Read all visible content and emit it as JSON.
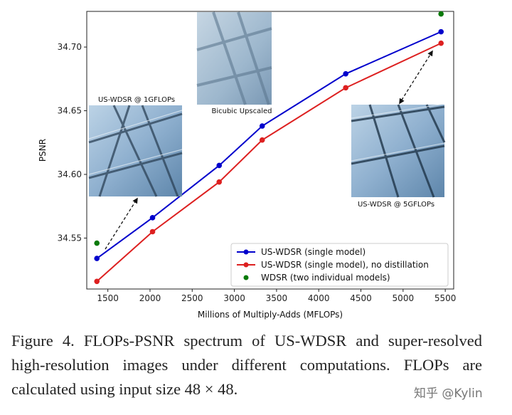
{
  "chart_data": {
    "type": "line",
    "xlabel": "Millions of Multiply-Adds (MFLOPs)",
    "ylabel": "PSNR",
    "xlim": [
      1250,
      5600
    ],
    "ylim": [
      34.51,
      34.728
    ],
    "xticks": [
      1500,
      2000,
      2500,
      3000,
      3500,
      4000,
      4500,
      5000,
      5500
    ],
    "yticks": [
      34.55,
      34.6,
      34.65,
      34.7
    ],
    "ytick_labels": [
      "34.55",
      "34.60",
      "34.65",
      "34.70"
    ],
    "legend_position": "lower-right",
    "grid": false,
    "series": [
      {
        "name": "US-WDSR (single model)",
        "kind": "line",
        "color": "#0000cc",
        "x": [
          1370,
          2030,
          2820,
          3330,
          4320,
          5450
        ],
        "y": [
          34.534,
          34.566,
          34.607,
          34.638,
          34.679,
          34.712
        ]
      },
      {
        "name": "US-WDSR (single model), no distillation",
        "kind": "line",
        "color": "#dd2020",
        "x": [
          1370,
          2030,
          2820,
          3330,
          4320,
          5450
        ],
        "y": [
          34.516,
          34.555,
          34.594,
          34.627,
          34.668,
          34.703
        ]
      },
      {
        "name": "WDSR (two individual models)",
        "kind": "scatter",
        "color": "#0a7a0a",
        "x": [
          1370,
          5450
        ],
        "y": [
          34.546,
          34.726
        ]
      }
    ],
    "insets": [
      {
        "label": "US-WDSR @ 1GFLOPs"
      },
      {
        "label": "Bicubic  Upscaled"
      },
      {
        "label": "US-WDSR @ 5GFLOPs"
      }
    ]
  },
  "caption": "Figure 4. FLOPs-PSNR spectrum of US-WDSR and super-resolved high-resolution images under different computations. FLOPs are calculated using input size 48 × 48.",
  "watermark": "知乎 @Kylin"
}
